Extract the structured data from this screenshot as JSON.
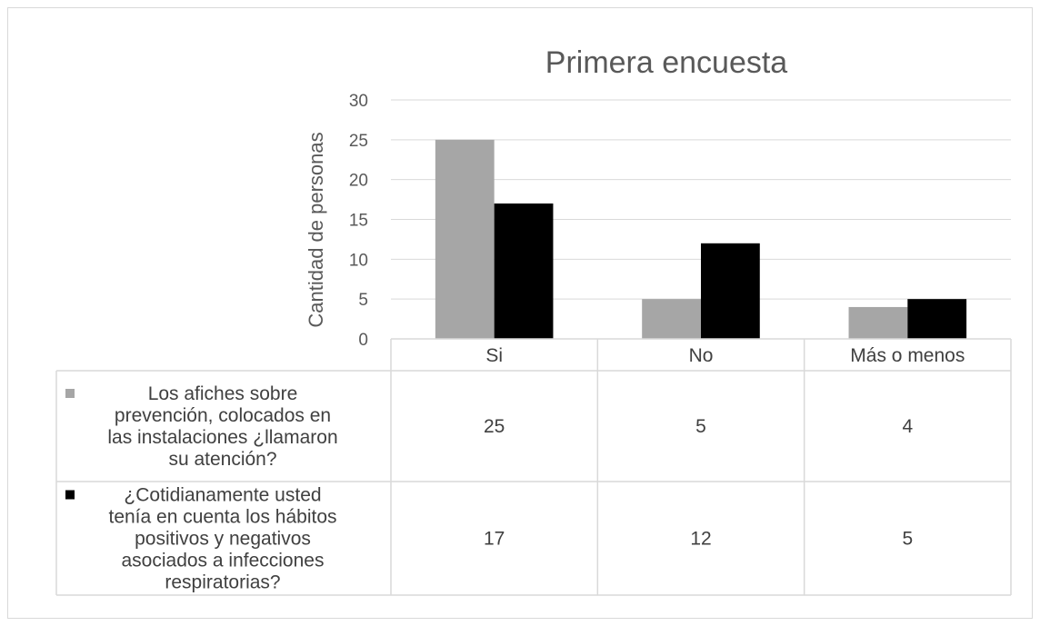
{
  "chart_data": {
    "type": "bar",
    "title": "Primera encuesta",
    "xlabel": "",
    "ylabel": "Cantidad de personas",
    "categories": [
      "Si",
      "No",
      "Más o menos"
    ],
    "ylim": [
      0,
      30
    ],
    "yticks": [
      0,
      5,
      10,
      15,
      20,
      25,
      30
    ],
    "grid": true,
    "legend": "data-table",
    "series": [
      {
        "name_lines": [
          "Los afiches sobre",
          "prevención, colocados en",
          "las instalaciones ¿llamaron",
          "su atención?"
        ],
        "values": [
          25,
          5,
          4
        ],
        "color": "#a6a6a6"
      },
      {
        "name_lines": [
          "¿Cotidianamente usted",
          "tenía en cuenta los hábitos",
          "positivos y negativos",
          "asociados a infecciones",
          "respiratorias?"
        ],
        "values": [
          17,
          12,
          5
        ],
        "color": "#000000"
      }
    ]
  },
  "colors": {
    "gridline": "#d9d9d9",
    "table_border": "#d9d9d9",
    "text": "#595959"
  }
}
